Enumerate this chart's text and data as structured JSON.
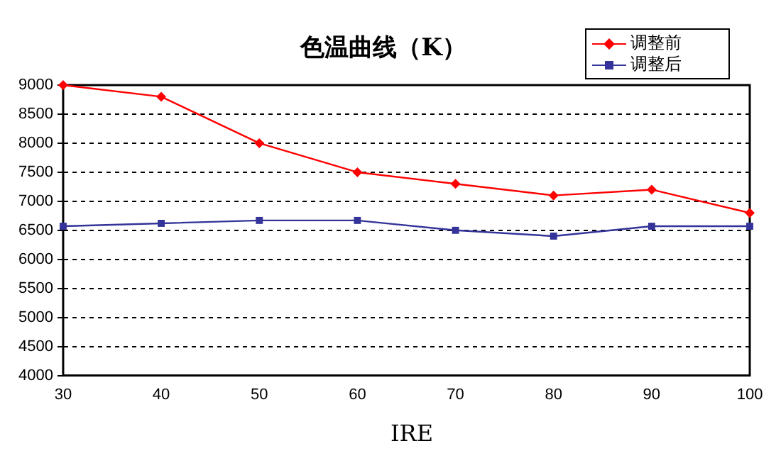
{
  "chart_data": {
    "type": "line",
    "title": "色温曲线（K）",
    "xlabel": "IRE",
    "x": [
      30,
      40,
      50,
      60,
      70,
      80,
      90,
      100
    ],
    "series": [
      {
        "name": "调整前",
        "color": "#ff0000",
        "marker": "diamond",
        "values": [
          9000,
          8800,
          8000,
          7500,
          7300,
          7100,
          7200,
          6800
        ]
      },
      {
        "name": "调整后",
        "color": "#333399",
        "marker": "square",
        "values": [
          6570,
          6620,
          6670,
          6670,
          6500,
          6400,
          6570,
          6570
        ]
      }
    ],
    "xlim": [
      30,
      100
    ],
    "xticks": [
      30,
      40,
      50,
      60,
      70,
      80,
      90,
      100
    ],
    "ylim": [
      4000,
      9000
    ],
    "yticks": [
      4000,
      4500,
      5000,
      5500,
      6000,
      6500,
      7000,
      7500,
      8000,
      8500,
      9000
    ],
    "grid": "y",
    "line_style": "solid",
    "legend": "top right"
  }
}
